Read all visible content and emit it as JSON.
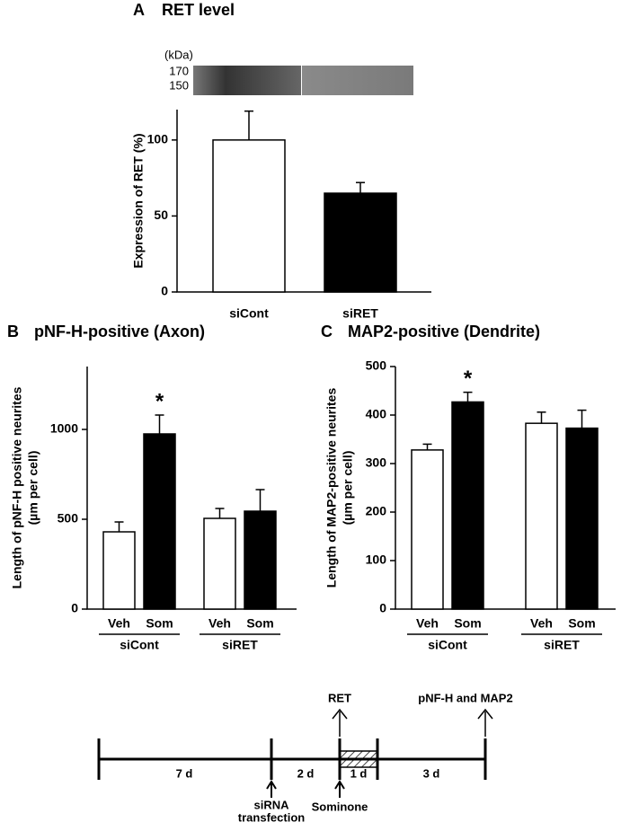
{
  "chart_data": [
    {
      "type": "bar",
      "panel": "A",
      "title": "RET level",
      "blot": {
        "unit": "(kDa)",
        "markers": [
          "170",
          "150"
        ]
      },
      "ylabel": [
        "Expression of RET (%)"
      ],
      "categories": [
        "siCont",
        "siRET"
      ],
      "values": [
        100,
        65
      ],
      "errors": [
        19,
        7
      ],
      "colors": [
        "#ffffff",
        "#000000"
      ],
      "ylim": [
        0,
        120
      ],
      "yticks": [
        0,
        50,
        100
      ]
    },
    {
      "type": "bar",
      "panel": "B",
      "title": "pNF-H-positive (Axon)",
      "ylabel": [
        "Length of pNF-H positive neurites",
        "(µm per cell)"
      ],
      "categories": [
        "Veh",
        "Som",
        "Veh",
        "Som"
      ],
      "groups": [
        "siCont",
        "siRET"
      ],
      "values": [
        430,
        975,
        505,
        545
      ],
      "errors": [
        55,
        105,
        55,
        120
      ],
      "markers": [
        null,
        "*",
        null,
        null
      ],
      "colors": [
        "#ffffff",
        "#000000",
        "#ffffff",
        "#000000"
      ],
      "ylim": [
        0,
        1350
      ],
      "yticks": [
        0,
        500,
        1000
      ]
    },
    {
      "type": "bar",
      "panel": "C",
      "title": "MAP2-positive (Dendrite)",
      "ylabel": [
        "Length of MAP2-positive neurites",
        "(µm per cell)"
      ],
      "categories": [
        "Veh",
        "Som",
        "Veh",
        "Som"
      ],
      "groups": [
        "siCont",
        "siRET"
      ],
      "values": [
        328,
        427,
        383,
        373
      ],
      "errors": [
        12,
        20,
        23,
        37
      ],
      "markers": [
        null,
        "*",
        null,
        null
      ],
      "colors": [
        "#ffffff",
        "#000000",
        "#ffffff",
        "#000000"
      ],
      "ylim": [
        0,
        500
      ],
      "yticks": [
        0,
        100,
        200,
        300,
        400,
        500
      ]
    }
  ],
  "timeline": {
    "periods": [
      "7 d",
      "2 d",
      "1 d",
      "3 d"
    ],
    "measures": [
      "RET",
      "pNF-H and MAP2"
    ],
    "treatments": [
      [
        "siRNA",
        "transfection"
      ],
      "Sominone"
    ]
  }
}
